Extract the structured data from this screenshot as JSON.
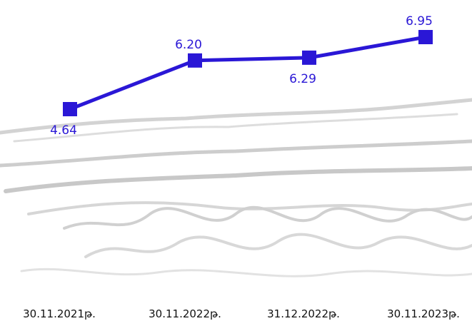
{
  "chart_data": {
    "type": "line",
    "title": "",
    "xlabel": "",
    "ylabel": "",
    "categories": [
      "30.11.2021թ.",
      "30.11.2022թ.",
      "31.12.2022թ.",
      "30.11.2023թ."
    ],
    "series": [
      {
        "values": [
          4.64,
          6.2,
          6.29,
          6.95
        ],
        "labels": [
          "4.64",
          "6.20",
          "6.29",
          "6.95"
        ]
      }
    ],
    "label_positions": [
      "below",
      "above",
      "below",
      "above"
    ],
    "ylim": [
      4.2,
      7.2
    ],
    "grid": false,
    "legend": "none",
    "colors": {
      "series": "#2a17d6",
      "ticks": "#111111",
      "background_texture": "#c9c9c9"
    }
  }
}
